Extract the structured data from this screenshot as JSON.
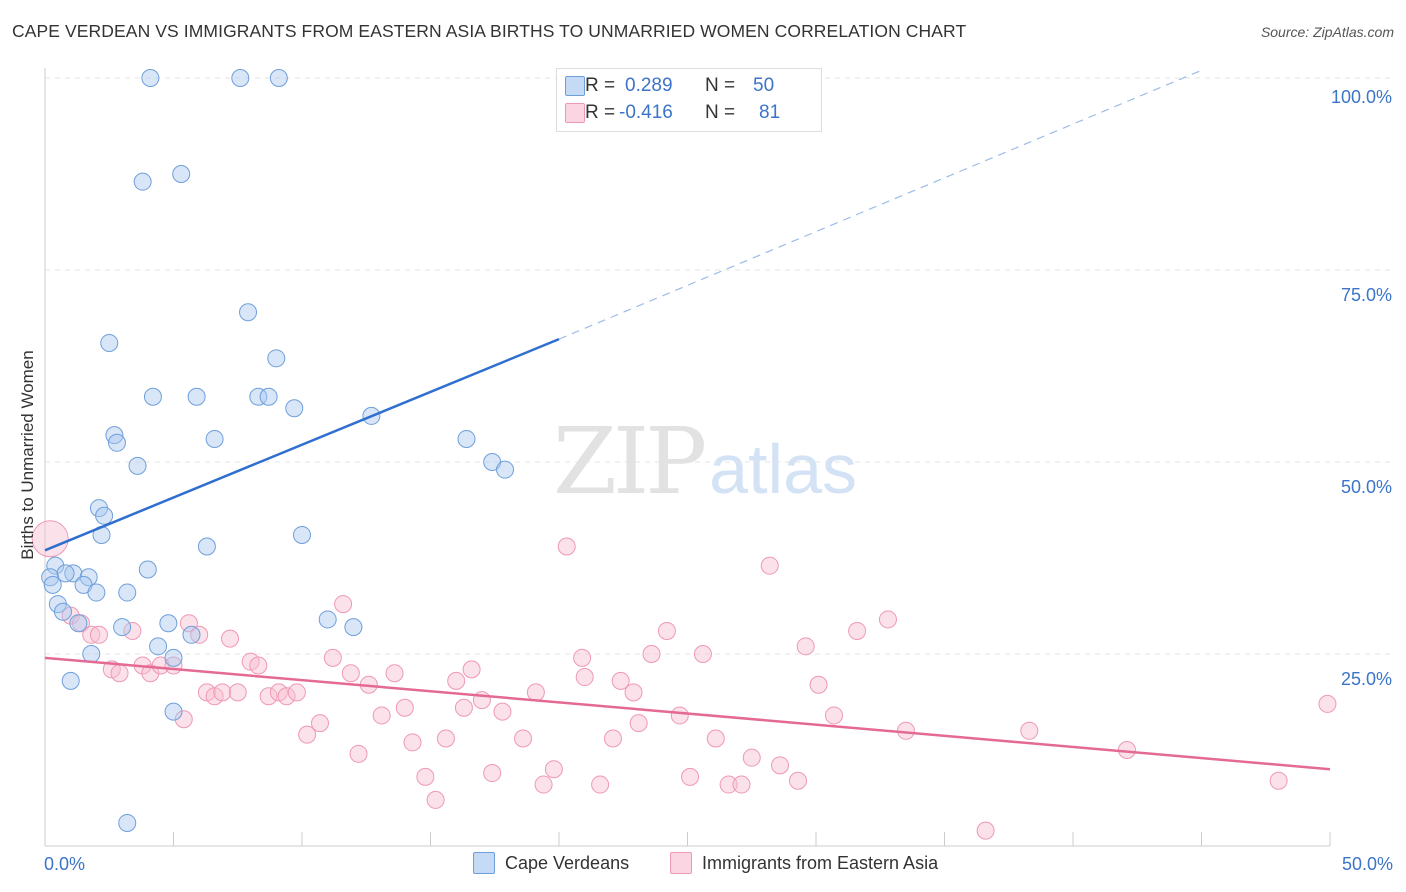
{
  "title": "CAPE VERDEAN VS IMMIGRANTS FROM EASTERN ASIA BIRTHS TO UNMARRIED WOMEN CORRELATION CHART",
  "source": "Source: ZipAtlas.com",
  "watermark": {
    "zip": "ZIP",
    "atlas": "atlas"
  },
  "legend": [
    {
      "r_label": "R =",
      "r_value": "0.289",
      "n_label": "N =",
      "n_value": "50",
      "color": "#a9c8ef"
    },
    {
      "r_label": "R =",
      "r_value": "-0.416",
      "n_label": "N =",
      "n_value": "81",
      "color": "#f6bfd0"
    }
  ],
  "bottom_legend": [
    "Cape Verdeans",
    "Immigrants from Eastern Asia"
  ],
  "chart_data": {
    "type": "scatter",
    "title": "CAPE VERDEAN VS IMMIGRANTS FROM EASTERN ASIA BIRTHS TO UNMARRIED WOMEN CORRELATION CHART",
    "xlabel": "",
    "ylabel": "Births to Unmarried Women",
    "xlim": [
      0,
      50
    ],
    "ylim": [
      0,
      100
    ],
    "x_tick_labels": [
      "0.0%",
      "50.0%"
    ],
    "y_tick_labels": [
      "25.0%",
      "50.0%",
      "75.0%",
      "100.0%"
    ],
    "y_ticks": [
      25,
      50,
      75,
      100
    ],
    "colors": {
      "blue": "#6f9fdb",
      "blue_line": "#2f6fd0",
      "pink": "#ef98b4",
      "pink_line": "#e46a94",
      "axis_text": "#3b74c8"
    },
    "series": [
      {
        "name": "Cape Verdeans",
        "r": 0.289,
        "n": 50,
        "trend": {
          "x0": 0,
          "y0": 38.5,
          "x1": 20,
          "y1": 66,
          "dash_to_x": 45,
          "dash_to_y": 101
        },
        "points": [
          [
            4.1,
            100
          ],
          [
            7.6,
            100
          ],
          [
            9.1,
            100
          ],
          [
            3.8,
            86.5
          ],
          [
            5.3,
            87.5
          ],
          [
            7.9,
            69.5
          ],
          [
            2.5,
            65.5
          ],
          [
            9.0,
            63.5
          ],
          [
            4.2,
            58.5
          ],
          [
            5.9,
            58.5
          ],
          [
            8.3,
            58.5
          ],
          [
            8.7,
            58.5
          ],
          [
            9.7,
            57
          ],
          [
            12.7,
            56
          ],
          [
            2.7,
            53.5
          ],
          [
            6.6,
            53
          ],
          [
            2.8,
            52.5
          ],
          [
            16.4,
            53
          ],
          [
            3.6,
            49.5
          ],
          [
            17.4,
            50
          ],
          [
            17.9,
            49
          ],
          [
            2.1,
            44
          ],
          [
            2.3,
            43
          ],
          [
            10.0,
            40.5
          ],
          [
            6.3,
            39
          ],
          [
            2.2,
            40.5
          ],
          [
            0.4,
            36.5
          ],
          [
            0.2,
            35
          ],
          [
            1.1,
            35.5
          ],
          [
            1.7,
            35
          ],
          [
            4.0,
            36
          ],
          [
            1.5,
            34
          ],
          [
            0.3,
            34
          ],
          [
            0.8,
            35.5
          ],
          [
            2.0,
            33
          ],
          [
            3.2,
            33
          ],
          [
            0.5,
            31.5
          ],
          [
            0.7,
            30.5
          ],
          [
            1.3,
            29
          ],
          [
            3.0,
            28.5
          ],
          [
            11.0,
            29.5
          ],
          [
            12.0,
            28.5
          ],
          [
            4.8,
            29
          ],
          [
            5.7,
            27.5
          ],
          [
            4.4,
            26
          ],
          [
            1.8,
            25
          ],
          [
            5.0,
            24.5
          ],
          [
            1.0,
            21.5
          ],
          [
            5.0,
            17.5
          ],
          [
            3.2,
            3
          ]
        ]
      },
      {
        "name": "Immigrants from Eastern Asia",
        "r": -0.416,
        "n": 81,
        "trend": {
          "x0": 0,
          "y0": 24.5,
          "x1": 50,
          "y1": 10
        },
        "points": [
          [
            0.2,
            40
          ],
          [
            1.0,
            30
          ],
          [
            1.4,
            29
          ],
          [
            1.8,
            27.5
          ],
          [
            2.1,
            27.5
          ],
          [
            2.6,
            23
          ],
          [
            2.9,
            22.5
          ],
          [
            3.4,
            28
          ],
          [
            3.8,
            23.5
          ],
          [
            4.1,
            22.5
          ],
          [
            4.5,
            23.5
          ],
          [
            5.0,
            23.5
          ],
          [
            5.4,
            16.5
          ],
          [
            5.6,
            29
          ],
          [
            6.0,
            27.5
          ],
          [
            6.3,
            20
          ],
          [
            6.6,
            19.5
          ],
          [
            6.9,
            20
          ],
          [
            7.2,
            27
          ],
          [
            7.5,
            20
          ],
          [
            8.0,
            24
          ],
          [
            8.3,
            23.5
          ],
          [
            8.7,
            19.5
          ],
          [
            9.1,
            20
          ],
          [
            9.4,
            19.5
          ],
          [
            9.8,
            20
          ],
          [
            10.2,
            14.5
          ],
          [
            10.7,
            16
          ],
          [
            11.2,
            24.5
          ],
          [
            11.6,
            31.5
          ],
          [
            11.9,
            22.5
          ],
          [
            12.2,
            12
          ],
          [
            12.6,
            21
          ],
          [
            13.1,
            17
          ],
          [
            13.6,
            22.5
          ],
          [
            14.0,
            18
          ],
          [
            14.3,
            13.5
          ],
          [
            14.8,
            9
          ],
          [
            15.2,
            6
          ],
          [
            15.6,
            14
          ],
          [
            16.0,
            21.5
          ],
          [
            16.3,
            18
          ],
          [
            16.6,
            23
          ],
          [
            17.0,
            19
          ],
          [
            17.4,
            9.5
          ],
          [
            17.8,
            17.5
          ],
          [
            18.6,
            14
          ],
          [
            19.1,
            20
          ],
          [
            19.4,
            8
          ],
          [
            19.8,
            10
          ],
          [
            20.3,
            39
          ],
          [
            20.9,
            24.5
          ],
          [
            21.0,
            22
          ],
          [
            21.6,
            8
          ],
          [
            22.1,
            14
          ],
          [
            22.4,
            21.5
          ],
          [
            22.9,
            20
          ],
          [
            23.1,
            16
          ],
          [
            23.6,
            25
          ],
          [
            24.2,
            28
          ],
          [
            24.7,
            17
          ],
          [
            25.1,
            9
          ],
          [
            25.6,
            25
          ],
          [
            26.1,
            14
          ],
          [
            26.6,
            8
          ],
          [
            27.1,
            8
          ],
          [
            27.5,
            11.5
          ],
          [
            28.2,
            36.5
          ],
          [
            28.6,
            10.5
          ],
          [
            29.3,
            8.5
          ],
          [
            29.6,
            26
          ],
          [
            30.1,
            21
          ],
          [
            30.7,
            17
          ],
          [
            31.6,
            28
          ],
          [
            32.8,
            29.5
          ],
          [
            33.5,
            15
          ],
          [
            36.6,
            2
          ],
          [
            38.3,
            15
          ],
          [
            42.1,
            12.5
          ],
          [
            48.0,
            8.5
          ],
          [
            49.9,
            18.5
          ]
        ]
      }
    ]
  }
}
